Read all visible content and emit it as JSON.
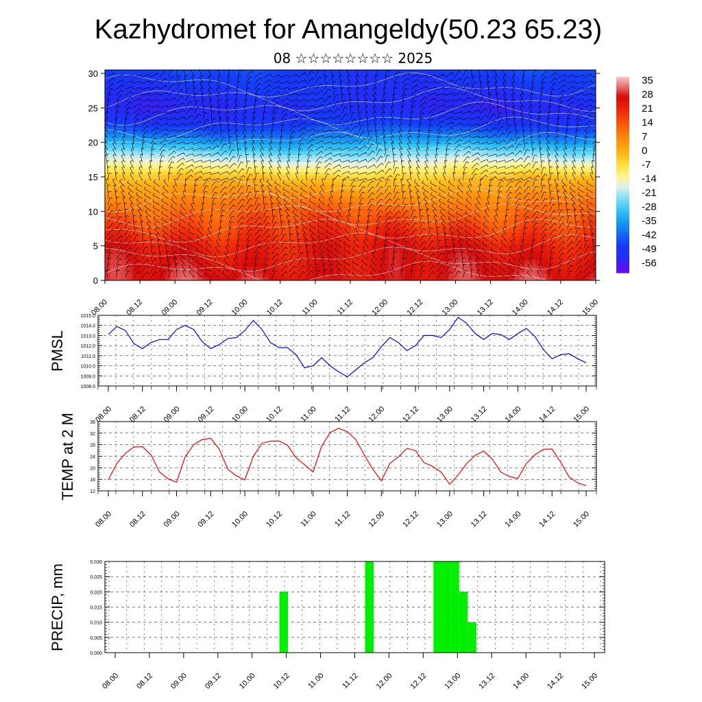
{
  "header": {
    "title": "Kazhydromet for Amangeldy(50.23 65.23)",
    "subtitle": "08 ☆☆☆☆☆☆☆☆ 2025"
  },
  "time_ticks": [
    "08.00",
    "08.12",
    "09.00",
    "09.12",
    "10.00",
    "10.12",
    "11.00",
    "11.12",
    "12.00",
    "12.12",
    "13.00",
    "13.12",
    "14.00",
    "14.12",
    "15.00"
  ],
  "colors": {
    "pmsl_line": "#0000ee",
    "temp_line": "#ee0000",
    "precip_bar": "#00ee00",
    "wind_barb": "#000000",
    "isotherm": "#e8e8e8"
  },
  "chart_data": [
    {
      "id": "vertical-section",
      "type": "heatmap",
      "title": "",
      "xlabel": "",
      "ylabel": "",
      "x_ticks": [
        "08.00",
        "08.12",
        "09.00",
        "09.12",
        "10.00",
        "10.12",
        "11.00",
        "11.12",
        "12.00",
        "12.12",
        "13.00",
        "13.12",
        "14.00",
        "14.12",
        "15.00"
      ],
      "y_ticks": [
        0,
        5,
        10,
        15,
        20,
        25,
        30
      ],
      "ylim": [
        0,
        30.5
      ],
      "overlay": "wind barbs and isotherms",
      "colorbar": {
        "labels": [
          "35",
          "28",
          "21",
          "14",
          "7",
          "0",
          "-7",
          "-14",
          "-21",
          "-28",
          "-35",
          "-42",
          "-49",
          "-56"
        ],
        "range": [
          -60,
          38
        ]
      },
      "temperature_profile": {
        "levels": [
          0,
          5,
          8,
          11,
          13,
          15,
          16,
          17,
          18,
          19,
          20,
          21,
          22,
          23,
          25,
          27,
          30.5
        ],
        "values": [
          28,
          24,
          17,
          10,
          4,
          -3,
          -9,
          -15,
          -21,
          -27,
          -33,
          -39,
          -44,
          -48,
          -52,
          -50,
          -46
        ]
      }
    },
    {
      "id": "pmsl",
      "type": "line",
      "ylabel": "PMSL",
      "ylim": [
        1008.0,
        1015.0
      ],
      "y_ticks": [
        "1008.0",
        "1009.0",
        "1010.0",
        "1011.0",
        "1012.0",
        "1013.0",
        "1014.0",
        "1015.0"
      ],
      "x_ticks": [
        "08.00",
        "08.12",
        "09.00",
        "09.12",
        "10.00",
        "10.12",
        "11.00",
        "11.12",
        "12.00",
        "12.12",
        "13.00",
        "13.12",
        "14.00",
        "14.12",
        "15.00"
      ],
      "x": [
        0,
        3,
        6,
        9,
        12,
        15,
        18,
        21,
        24,
        27,
        30,
        33,
        36,
        39,
        42,
        45,
        48,
        51,
        54,
        57,
        60,
        63,
        66,
        69,
        72,
        75,
        78,
        81,
        84,
        87,
        90,
        93,
        96,
        99,
        102,
        105,
        108,
        111,
        114,
        117,
        120,
        123,
        126,
        129,
        132,
        135,
        138,
        141,
        144,
        147,
        150,
        153,
        156,
        159,
        162,
        165,
        168
      ],
      "values": [
        1013.1,
        1013.9,
        1013.5,
        1012.2,
        1011.7,
        1012.3,
        1012.6,
        1012.6,
        1013.6,
        1014.0,
        1013.6,
        1012.4,
        1011.7,
        1012.1,
        1012.7,
        1012.8,
        1013.5,
        1014.5,
        1013.6,
        1012.3,
        1011.8,
        1011.8,
        1011.1,
        1009.8,
        1010.0,
        1010.8,
        1010.0,
        1009.4,
        1008.9,
        1009.6,
        1010.3,
        1010.8,
        1011.9,
        1012.8,
        1012.3,
        1011.5,
        1012.0,
        1013.0,
        1013.0,
        1012.8,
        1013.6,
        1014.8,
        1014.2,
        1013.2,
        1012.6,
        1013.2,
        1013.1,
        1012.6,
        1013.2,
        1013.7,
        1012.9,
        1011.6,
        1010.7,
        1011.1,
        1011.2,
        1010.7,
        1010.3
      ]
    },
    {
      "id": "temp2m",
      "type": "line",
      "ylabel": "TEMP at 2 M",
      "ylim": [
        12,
        36
      ],
      "y_ticks": [
        "12",
        "16",
        "20",
        "24",
        "28",
        "32",
        "36"
      ],
      "x_ticks": [
        "08.00",
        "08.12",
        "09.00",
        "09.12",
        "10.00",
        "10.12",
        "11.00",
        "11.12",
        "12.00",
        "12.12",
        "13.00",
        "13.12",
        "14.00",
        "14.12",
        "15.00"
      ],
      "x": [
        0,
        3,
        6,
        9,
        12,
        15,
        18,
        21,
        24,
        27,
        30,
        33,
        36,
        39,
        42,
        45,
        48,
        51,
        54,
        57,
        60,
        63,
        66,
        69,
        72,
        75,
        78,
        81,
        84,
        87,
        90,
        93,
        96,
        99,
        102,
        105,
        108,
        111,
        114,
        117,
        120,
        123,
        126,
        129,
        132,
        135,
        138,
        141,
        144,
        147,
        150,
        153,
        156,
        159,
        162,
        165,
        168
      ],
      "values": [
        15.8,
        21.5,
        25.0,
        27.2,
        27.3,
        24.5,
        18.5,
        16.2,
        15.0,
        23.8,
        28.0,
        29.8,
        30.2,
        26.5,
        19.5,
        17.2,
        15.8,
        24.0,
        28.5,
        29.2,
        29.3,
        27.8,
        23.5,
        21.0,
        18.5,
        27.5,
        32.2,
        33.7,
        32.5,
        29.8,
        24.5,
        19.5,
        15.5,
        21.5,
        23.8,
        26.7,
        26.0,
        21.8,
        20.5,
        18.5,
        14.3,
        17.5,
        21.5,
        24.3,
        25.8,
        23.0,
        18.5,
        17.0,
        16.3,
        21.5,
        24.5,
        26.4,
        26.5,
        22.0,
        16.8,
        14.8,
        13.8
      ]
    },
    {
      "id": "precip",
      "type": "bar",
      "ylabel": "PRECIP, mm",
      "ylim": [
        0.0,
        0.03
      ],
      "y_ticks": [
        "0.000",
        "0.005",
        "0.010",
        "0.015",
        "0.020",
        "0.025",
        "0.030"
      ],
      "x_ticks": [
        "08.00",
        "08.12",
        "09.00",
        "09.12",
        "10.00",
        "10.12",
        "11.00",
        "11.12",
        "12.00",
        "12.12",
        "13.00",
        "13.12",
        "14.00",
        "14.12",
        "15.00"
      ],
      "x": [
        60,
        90,
        114,
        117,
        120,
        123,
        126
      ],
      "values": [
        0.02,
        0.03,
        0.03,
        0.03,
        0.03,
        0.02,
        0.01
      ]
    }
  ]
}
